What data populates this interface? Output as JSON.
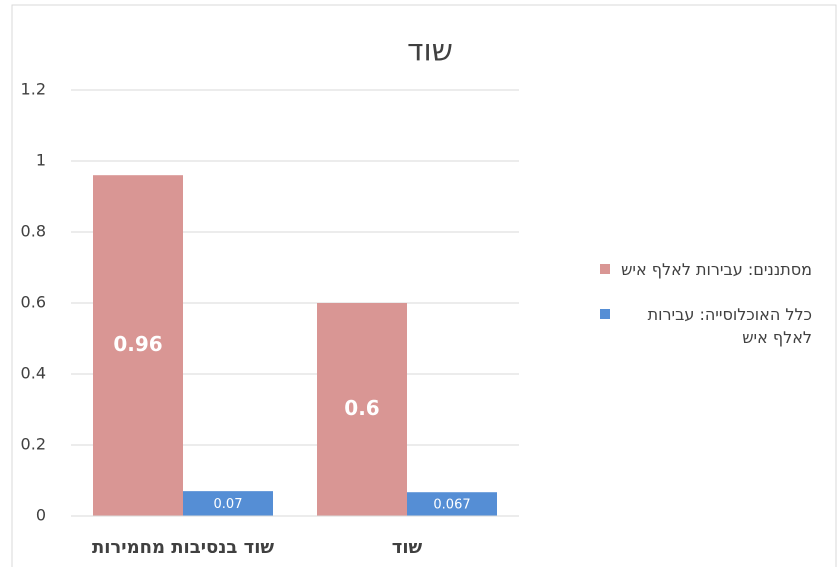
{
  "chart_data": {
    "type": "bar",
    "title": "שוד",
    "categories": [
      "שוד בנסיבות מחמירות",
      "שוד"
    ],
    "series": [
      {
        "name": "מסתננים: עבירות לאלף איש",
        "color": "#d99694",
        "values": [
          0.96,
          0.6
        ]
      },
      {
        "name": "כלל האוכלוסייה: עבירות לאלף איש",
        "color": "#558ed5",
        "values": [
          0.07,
          0.067
        ]
      }
    ],
    "ylim": [
      0,
      1.2
    ],
    "yticks": [
      0,
      0.2,
      0.4,
      0.6,
      0.8,
      1,
      1.2
    ],
    "grid": true,
    "legend": "right"
  }
}
